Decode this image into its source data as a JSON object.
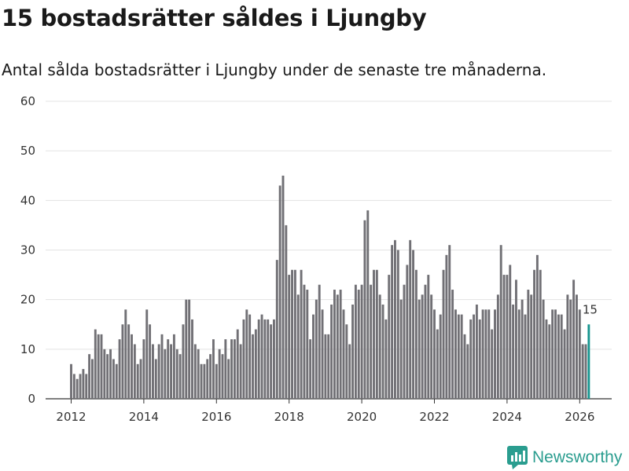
{
  "title": "15 bostadsrätter såldes i Ljungby",
  "subtitle": "Antal sålda bostadsrätter i Ljungby under de senaste tre månaderna.",
  "brand": "Newsworthy",
  "colors": {
    "bar": "#717075",
    "highlight": "#17958f",
    "grid": "#e3e3e3",
    "axis": "#333333",
    "brand": "#2a9d8f"
  },
  "chart_data": {
    "type": "bar",
    "title": "15 bostadsrätter såldes i Ljungby",
    "subtitle": "Antal sålda bostadsrätter i Ljungby under de senaste tre månaderna.",
    "xlabel": "",
    "ylabel": "",
    "ylim": [
      0,
      60
    ],
    "yticks": [
      0,
      10,
      20,
      30,
      40,
      50,
      60
    ],
    "xticks": [
      2012,
      2014,
      2016,
      2018,
      2020,
      2022,
      2024,
      2026
    ],
    "x_start": "2012-01",
    "frequency": "monthly",
    "grid": true,
    "highlight_label": "15",
    "values": [
      7,
      5,
      4,
      5,
      6,
      5,
      9,
      8,
      14,
      13,
      13,
      10,
      9,
      10,
      8,
      7,
      12,
      15,
      18,
      15,
      13,
      11,
      7,
      8,
      12,
      18,
      15,
      11,
      8,
      11,
      13,
      10,
      12,
      11,
      13,
      10,
      9,
      15,
      20,
      20,
      16,
      11,
      10,
      7,
      7,
      8,
      9,
      12,
      7,
      10,
      9,
      12,
      8,
      12,
      12,
      14,
      11,
      16,
      18,
      17,
      13,
      14,
      16,
      17,
      16,
      16,
      15,
      16,
      28,
      43,
      45,
      35,
      25,
      26,
      26,
      21,
      26,
      23,
      22,
      12,
      17,
      20,
      23,
      18,
      13,
      13,
      19,
      22,
      21,
      22,
      18,
      15,
      11,
      19,
      23,
      22,
      23,
      36,
      38,
      23,
      26,
      26,
      21,
      19,
      16,
      25,
      31,
      32,
      30,
      20,
      23,
      27,
      32,
      30,
      26,
      20,
      21,
      23,
      25,
      21,
      18,
      14,
      17,
      26,
      29,
      31,
      22,
      18,
      17,
      17,
      13,
      11,
      16,
      17,
      19,
      16,
      18,
      18,
      18,
      14,
      18,
      21,
      31,
      25,
      25,
      27,
      19,
      24,
      18,
      20,
      17,
      22,
      21,
      26,
      29,
      26,
      20,
      16,
      15,
      18,
      18,
      17,
      17,
      14,
      21,
      20,
      24,
      21,
      18,
      11,
      11,
      15
    ]
  }
}
